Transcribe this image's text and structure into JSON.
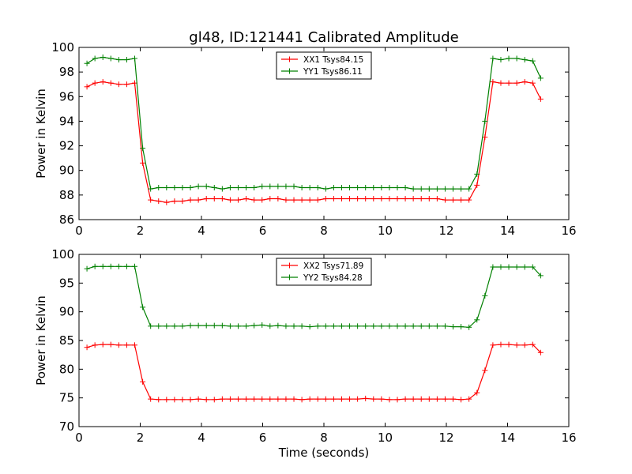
{
  "title": "gl48, ID:121441 Calibrated Amplitude",
  "xlabel": "Time (seconds)",
  "chart_data": [
    {
      "type": "line",
      "ylabel": "Power in Kelvin",
      "xlim": [
        0,
        16
      ],
      "ylim": [
        86,
        100
      ],
      "xticks": [
        0,
        2,
        4,
        6,
        8,
        10,
        12,
        14,
        16
      ],
      "yticks": [
        86,
        88,
        90,
        92,
        94,
        96,
        98,
        100
      ],
      "legend_position": "top-center",
      "x": [
        0.26,
        0.52,
        0.78,
        1.04,
        1.3,
        1.56,
        1.82,
        2.08,
        2.34,
        2.6,
        2.86,
        3.12,
        3.38,
        3.64,
        3.9,
        4.16,
        4.42,
        4.68,
        4.94,
        5.2,
        5.46,
        5.72,
        5.98,
        6.24,
        6.5,
        6.76,
        7.02,
        7.28,
        7.54,
        7.8,
        8.06,
        8.32,
        8.58,
        8.84,
        9.1,
        9.36,
        9.62,
        9.88,
        10.14,
        10.4,
        10.66,
        10.92,
        11.18,
        11.44,
        11.7,
        11.96,
        12.22,
        12.48,
        12.74,
        13.0,
        13.26,
        13.52,
        13.78,
        14.04,
        14.3,
        14.56,
        14.82,
        15.08
      ],
      "series": [
        {
          "name": "XX1 Tsys84.15",
          "color": "#ff0000",
          "values": [
            96.8,
            97.1,
            97.2,
            97.1,
            97.0,
            97.0,
            97.1,
            90.6,
            87.6,
            87.5,
            87.4,
            87.5,
            87.5,
            87.6,
            87.6,
            87.7,
            87.7,
            87.7,
            87.6,
            87.6,
            87.7,
            87.6,
            87.6,
            87.7,
            87.7,
            87.6,
            87.6,
            87.6,
            87.6,
            87.6,
            87.7,
            87.7,
            87.7,
            87.7,
            87.7,
            87.7,
            87.7,
            87.7,
            87.7,
            87.7,
            87.7,
            87.7,
            87.7,
            87.7,
            87.7,
            87.6,
            87.6,
            87.6,
            87.6,
            88.8,
            92.7,
            97.2,
            97.1,
            97.1,
            97.1,
            97.2,
            97.1,
            95.8
          ]
        },
        {
          "name": "YY1 Tsys86.11",
          "color": "#008000",
          "values": [
            98.7,
            99.1,
            99.2,
            99.1,
            99.0,
            99.0,
            99.1,
            91.8,
            88.5,
            88.6,
            88.6,
            88.6,
            88.6,
            88.6,
            88.7,
            88.7,
            88.6,
            88.5,
            88.6,
            88.6,
            88.6,
            88.6,
            88.7,
            88.7,
            88.7,
            88.7,
            88.7,
            88.6,
            88.6,
            88.6,
            88.5,
            88.6,
            88.6,
            88.6,
            88.6,
            88.6,
            88.6,
            88.6,
            88.6,
            88.6,
            88.6,
            88.5,
            88.5,
            88.5,
            88.5,
            88.5,
            88.5,
            88.5,
            88.5,
            89.7,
            94.0,
            99.1,
            99.0,
            99.1,
            99.1,
            99.0,
            98.9,
            97.5
          ]
        }
      ]
    },
    {
      "type": "line",
      "ylabel": "Power in Kelvin",
      "xlabel": "Time (seconds)",
      "xlim": [
        0,
        16
      ],
      "ylim": [
        70,
        100
      ],
      "xticks": [
        0,
        2,
        4,
        6,
        8,
        10,
        12,
        14,
        16
      ],
      "yticks": [
        70,
        75,
        80,
        85,
        90,
        95,
        100
      ],
      "legend_position": "top-center",
      "x": [
        0.26,
        0.52,
        0.78,
        1.04,
        1.3,
        1.56,
        1.82,
        2.08,
        2.34,
        2.6,
        2.86,
        3.12,
        3.38,
        3.64,
        3.9,
        4.16,
        4.42,
        4.68,
        4.94,
        5.2,
        5.46,
        5.72,
        5.98,
        6.24,
        6.5,
        6.76,
        7.02,
        7.28,
        7.54,
        7.8,
        8.06,
        8.32,
        8.58,
        8.84,
        9.1,
        9.36,
        9.62,
        9.88,
        10.14,
        10.4,
        10.66,
        10.92,
        11.18,
        11.44,
        11.7,
        11.96,
        12.22,
        12.48,
        12.74,
        13.0,
        13.26,
        13.52,
        13.78,
        14.04,
        14.3,
        14.56,
        14.82,
        15.08
      ],
      "series": [
        {
          "name": "XX2 Tsys71.89",
          "color": "#ff0000",
          "values": [
            83.8,
            84.2,
            84.3,
            84.3,
            84.2,
            84.2,
            84.2,
            77.8,
            74.8,
            74.7,
            74.7,
            74.7,
            74.7,
            74.7,
            74.8,
            74.7,
            74.7,
            74.8,
            74.8,
            74.8,
            74.8,
            74.8,
            74.8,
            74.8,
            74.8,
            74.8,
            74.8,
            74.7,
            74.8,
            74.8,
            74.8,
            74.8,
            74.8,
            74.8,
            74.8,
            74.9,
            74.8,
            74.8,
            74.7,
            74.7,
            74.8,
            74.8,
            74.8,
            74.8,
            74.8,
            74.8,
            74.8,
            74.7,
            74.8,
            75.9,
            79.8,
            84.2,
            84.3,
            84.3,
            84.2,
            84.2,
            84.3,
            82.9
          ]
        },
        {
          "name": "YY2 Tsys84.28",
          "color": "#008000",
          "values": [
            97.5,
            97.9,
            97.9,
            97.9,
            97.9,
            97.9,
            97.9,
            90.8,
            87.5,
            87.5,
            87.5,
            87.5,
            87.5,
            87.6,
            87.6,
            87.6,
            87.6,
            87.6,
            87.5,
            87.5,
            87.5,
            87.6,
            87.7,
            87.5,
            87.6,
            87.5,
            87.5,
            87.5,
            87.4,
            87.5,
            87.5,
            87.5,
            87.5,
            87.5,
            87.5,
            87.5,
            87.5,
            87.5,
            87.5,
            87.5,
            87.5,
            87.5,
            87.5,
            87.5,
            87.5,
            87.5,
            87.4,
            87.4,
            87.3,
            88.6,
            92.8,
            97.8,
            97.8,
            97.8,
            97.8,
            97.8,
            97.8,
            96.3
          ]
        }
      ]
    }
  ]
}
